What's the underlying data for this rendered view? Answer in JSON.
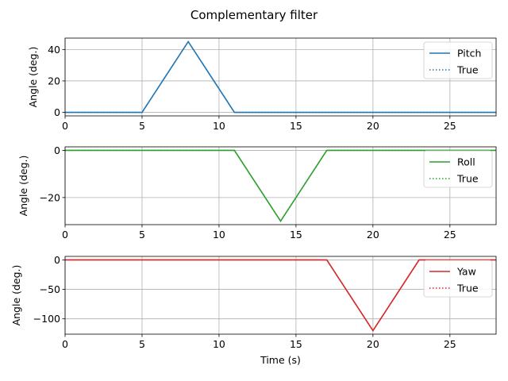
{
  "figure_title": "Complementary filter",
  "chart_data": [
    {
      "type": "line",
      "title": "",
      "xlabel": "",
      "ylabel": "Angle (deg.)",
      "xlim": [
        0,
        28
      ],
      "ylim": [
        -2.25,
        47.25
      ],
      "xticks": [
        0,
        5,
        10,
        15,
        20,
        25
      ],
      "yticks": [
        0,
        20,
        40
      ],
      "grid": true,
      "legend": "top-right",
      "series": [
        {
          "name": "Pitch",
          "style": "solid",
          "color": "#1f77b4",
          "x": [
            0,
            5,
            8,
            11,
            28
          ],
          "y": [
            0,
            0,
            45,
            0,
            0
          ]
        },
        {
          "name": "True",
          "style": "dotted",
          "color": "#1f77b4",
          "x": [
            0,
            5,
            8,
            11,
            28
          ],
          "y": [
            0,
            0,
            45,
            0,
            0
          ]
        }
      ]
    },
    {
      "type": "line",
      "title": "",
      "xlabel": "",
      "ylabel": "Angle (deg.)",
      "xlim": [
        0,
        28
      ],
      "ylim": [
        -31.5,
        1.5
      ],
      "xticks": [
        0,
        5,
        10,
        15,
        20,
        25
      ],
      "yticks": [
        0,
        -20
      ],
      "grid": true,
      "legend": "top-right",
      "series": [
        {
          "name": "Roll",
          "style": "solid",
          "color": "#2ca02c",
          "x": [
            0,
            11,
            14,
            17,
            28
          ],
          "y": [
            0,
            0,
            -30,
            0,
            0
          ]
        },
        {
          "name": "True",
          "style": "dotted",
          "color": "#2ca02c",
          "x": [
            0,
            11,
            14,
            17,
            28
          ],
          "y": [
            0,
            0,
            -30,
            0,
            0
          ]
        }
      ]
    },
    {
      "type": "line",
      "title": "",
      "xlabel": "Time (s)",
      "ylabel": "Angle (deg.)",
      "xlim": [
        0,
        28
      ],
      "ylim": [
        -126,
        6
      ],
      "xticks": [
        0,
        5,
        10,
        15,
        20,
        25
      ],
      "yticks": [
        0,
        -50,
        -100
      ],
      "grid": true,
      "legend": "top-right",
      "series": [
        {
          "name": "Yaw",
          "style": "solid",
          "color": "#d62728",
          "x": [
            0,
            17,
            20,
            23,
            28
          ],
          "y": [
            0,
            0,
            -120,
            0,
            0
          ]
        },
        {
          "name": "True",
          "style": "dotted",
          "color": "#d62728",
          "x": [
            0,
            17,
            20,
            23,
            28
          ],
          "y": [
            0,
            0,
            -120,
            0,
            0
          ]
        }
      ]
    }
  ]
}
